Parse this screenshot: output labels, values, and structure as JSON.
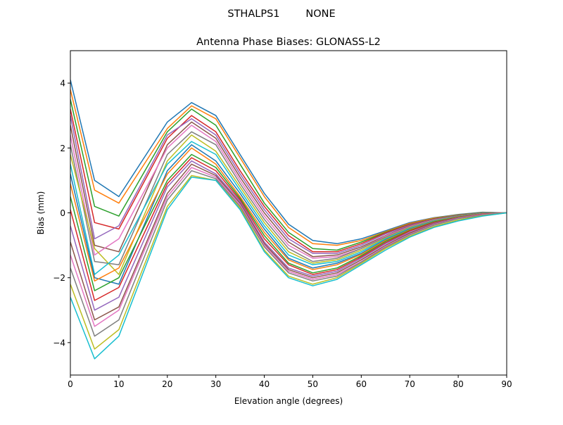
{
  "chart_data": {
    "type": "line",
    "suptitle": "STHALPS1        NONE",
    "title": "Antenna Phase Biases: GLONASS-L2",
    "xlabel": "Elevation angle (degrees)",
    "ylabel": "Bias (mm)",
    "xlim": [
      0,
      90
    ],
    "ylim": [
      -5,
      5
    ],
    "xticks": [
      0,
      10,
      20,
      30,
      40,
      50,
      60,
      70,
      80,
      90
    ],
    "yticks": [
      -4,
      -2,
      0,
      2,
      4
    ],
    "grid": false,
    "legend": "none",
    "colors": [
      "#1f77b4",
      "#ff7f0e",
      "#2ca02c",
      "#d62728",
      "#9467bd",
      "#8c564b",
      "#e377c2",
      "#7f7f7f",
      "#bcbd22",
      "#17becf"
    ],
    "x": [
      0,
      5,
      10,
      20,
      25,
      30,
      35,
      40,
      45,
      50,
      55,
      60,
      65,
      70,
      75,
      80,
      85,
      90
    ],
    "series": [
      {
        "values": [
          4.1,
          1.0,
          0.5,
          2.8,
          3.4,
          3.0,
          1.8,
          0.6,
          -0.35,
          -0.85,
          -0.95,
          -0.8,
          -0.55,
          -0.3,
          -0.15,
          -0.05,
          0.02,
          0
        ]
      },
      {
        "values": [
          3.8,
          0.7,
          0.3,
          2.6,
          3.3,
          2.9,
          1.7,
          0.5,
          -0.45,
          -0.95,
          -1.0,
          -0.85,
          -0.58,
          -0.32,
          -0.16,
          -0.06,
          0.01,
          0
        ]
      },
      {
        "values": [
          3.5,
          0.2,
          -0.1,
          2.5,
          3.2,
          2.7,
          1.5,
          0.3,
          -0.6,
          -1.1,
          -1.15,
          -0.9,
          -0.6,
          -0.35,
          -0.18,
          -0.07,
          0.01,
          0
        ]
      },
      {
        "values": [
          3.2,
          -0.3,
          -0.5,
          2.3,
          3.0,
          2.5,
          1.3,
          0.2,
          -0.7,
          -1.2,
          -1.2,
          -0.95,
          -0.62,
          -0.36,
          -0.19,
          -0.08,
          0,
          0
        ]
      },
      {
        "values": [
          3.0,
          -0.8,
          -0.4,
          2.4,
          2.9,
          2.4,
          1.2,
          0.1,
          -0.8,
          -1.25,
          -1.25,
          -1.0,
          -0.65,
          -0.38,
          -0.2,
          -0.08,
          0,
          0
        ]
      },
      {
        "values": [
          2.7,
          -1.0,
          -1.2,
          2.1,
          2.8,
          2.3,
          1.1,
          0.0,
          -0.9,
          -1.35,
          -1.3,
          -1.05,
          -0.7,
          -0.4,
          -0.21,
          -0.09,
          0,
          0
        ]
      },
      {
        "values": [
          2.4,
          -1.3,
          -0.8,
          2.0,
          2.7,
          2.2,
          1.0,
          -0.1,
          -1.0,
          -1.4,
          -1.35,
          -1.1,
          -0.72,
          -0.42,
          -0.22,
          -0.1,
          -0.01,
          0
        ]
      },
      {
        "values": [
          2.1,
          -1.5,
          -1.6,
          1.8,
          2.5,
          2.1,
          0.9,
          -0.2,
          -1.1,
          -1.5,
          -1.4,
          -1.1,
          -0.75,
          -0.44,
          -0.23,
          -0.1,
          -0.01,
          0
        ]
      },
      {
        "values": [
          1.8,
          -1.1,
          -1.9,
          1.6,
          2.4,
          1.9,
          0.8,
          -0.3,
          -1.2,
          -1.55,
          -1.45,
          -1.15,
          -0.78,
          -0.46,
          -0.24,
          -0.11,
          -0.02,
          0
        ]
      },
      {
        "values": [
          1.5,
          -1.9,
          -1.3,
          1.5,
          2.2,
          1.8,
          0.7,
          -0.4,
          -1.3,
          -1.6,
          -1.5,
          -1.2,
          -0.8,
          -0.48,
          -0.25,
          -0.11,
          -0.02,
          0
        ]
      },
      {
        "values": [
          1.2,
          -2.0,
          -2.2,
          1.3,
          2.1,
          1.6,
          0.6,
          -0.5,
          -1.4,
          -1.7,
          -1.55,
          -1.25,
          -0.83,
          -0.5,
          -0.26,
          -0.12,
          -0.03,
          0
        ]
      },
      {
        "values": [
          0.9,
          -2.1,
          -1.7,
          1.2,
          2.0,
          1.5,
          0.5,
          -0.6,
          -1.45,
          -1.75,
          -1.6,
          -1.28,
          -0.85,
          -0.52,
          -0.27,
          -0.12,
          -0.03,
          0
        ]
      },
      {
        "values": [
          0.5,
          -2.4,
          -2.0,
          1.0,
          1.8,
          1.4,
          0.45,
          -0.7,
          -1.55,
          -1.85,
          -1.7,
          -1.32,
          -0.88,
          -0.54,
          -0.28,
          -0.13,
          -0.04,
          0
        ]
      },
      {
        "values": [
          0.1,
          -2.7,
          -2.3,
          0.9,
          1.7,
          1.3,
          0.4,
          -0.8,
          -1.6,
          -1.9,
          -1.75,
          -1.36,
          -0.92,
          -0.56,
          -0.3,
          -0.14,
          -0.04,
          0
        ]
      },
      {
        "values": [
          -0.4,
          -3.0,
          -2.6,
          0.8,
          1.6,
          1.2,
          0.35,
          -0.9,
          -1.7,
          -1.95,
          -1.8,
          -1.4,
          -0.95,
          -0.6,
          -0.32,
          -0.15,
          -0.05,
          0
        ]
      },
      {
        "values": [
          -0.9,
          -3.3,
          -2.9,
          0.6,
          1.5,
          1.15,
          0.3,
          -0.95,
          -1.75,
          -2.0,
          -1.85,
          -1.45,
          -1.0,
          -0.63,
          -0.34,
          -0.16,
          -0.06,
          0
        ]
      },
      {
        "values": [
          -1.3,
          -3.5,
          -3.0,
          0.5,
          1.4,
          1.1,
          0.25,
          -1.0,
          -1.8,
          -2.05,
          -1.9,
          -1.5,
          -1.03,
          -0.66,
          -0.36,
          -0.17,
          -0.06,
          0
        ]
      },
      {
        "values": [
          -1.7,
          -3.8,
          -3.3,
          0.4,
          1.3,
          1.05,
          0.2,
          -1.05,
          -1.85,
          -2.1,
          -1.95,
          -1.52,
          -1.06,
          -0.68,
          -0.38,
          -0.18,
          -0.07,
          0
        ]
      },
      {
        "values": [
          -2.2,
          -4.2,
          -3.6,
          0.2,
          1.15,
          1.0,
          0.15,
          -1.15,
          -1.95,
          -2.2,
          -2.0,
          -1.56,
          -1.1,
          -0.72,
          -0.42,
          -0.22,
          -0.09,
          0
        ]
      },
      {
        "values": [
          -2.6,
          -4.5,
          -3.8,
          0.1,
          1.1,
          1.0,
          0.1,
          -1.2,
          -2.0,
          -2.25,
          -2.05,
          -1.6,
          -1.15,
          -0.75,
          -0.45,
          -0.25,
          -0.1,
          0
        ]
      }
    ]
  }
}
